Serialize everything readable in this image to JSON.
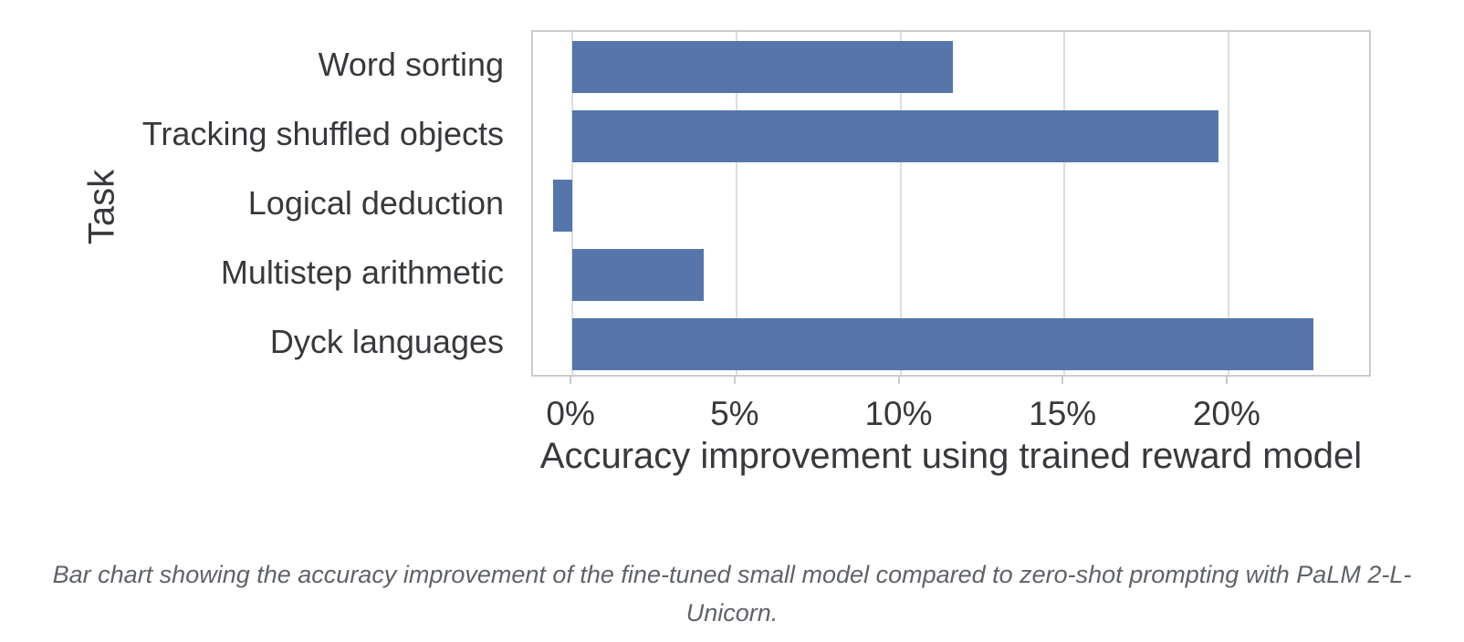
{
  "figure": {
    "y_axis_title": "Task",
    "x_axis_title": "Accuracy improvement using trained reward model"
  },
  "caption": {
    "lines": [
      "Bar chart showing the accuracy improvement of the fine-tuned small model compared to zero-shot prompting with PaLM 2-L-",
      "Unicorn."
    ]
  },
  "colors": {
    "bar": "#5676ab",
    "gridline": "#dcdee1",
    "plot_border": "#c9cbce",
    "figure_text": "#37393c",
    "caption_text": "#5f6368"
  },
  "chart_data": {
    "type": "bar",
    "orientation": "horizontal",
    "title": "",
    "xlabel": "Accuracy improvement using trained reward model",
    "ylabel": "Task",
    "categories": [
      "Word sorting",
      "Tracking shuffled objects",
      "Logical deduction",
      "Multistep arithmetic",
      "Dyck languages"
    ],
    "values": [
      11.6,
      19.7,
      -0.6,
      4.0,
      22.6
    ],
    "unit": "%",
    "xlim": [
      -1.2,
      24.4
    ],
    "x_tick_values": [
      0,
      5,
      10,
      15,
      20
    ],
    "x_tick_labels": [
      "0%",
      "5%",
      "10%",
      "15%",
      "20%"
    ],
    "grid": true,
    "legend": false,
    "bar_color": "#5676ab"
  }
}
